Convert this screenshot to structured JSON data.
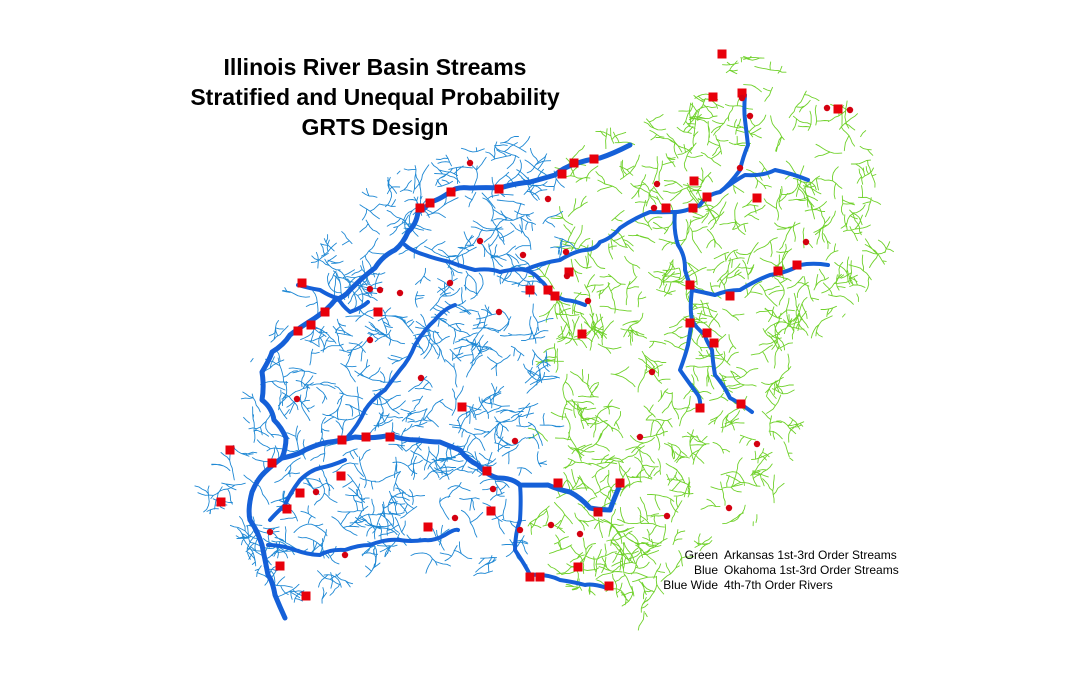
{
  "title": {
    "line1": "Illinois River Basin Streams",
    "line2": "Stratified and Unequal Probability",
    "line3": "GRTS Design"
  },
  "legend": [
    {
      "key": "Green",
      "label": "Arkansas 1st-3rd Order Streams"
    },
    {
      "key": "Blue",
      "label": "Okahoma 1st-3rd Order Streams"
    },
    {
      "key": "Blue Wide",
      "label": "4th-7th Order Rivers"
    }
  ],
  "colors": {
    "arkansas_streams": "#6fd12a",
    "oklahoma_streams": "#1e88d4",
    "major_rivers": "#1560d8",
    "sample_markers": "#e8000b",
    "background": "#ffffff"
  },
  "markers": {
    "square_symbol": "red-square",
    "circle_symbol": "red-dot"
  }
}
